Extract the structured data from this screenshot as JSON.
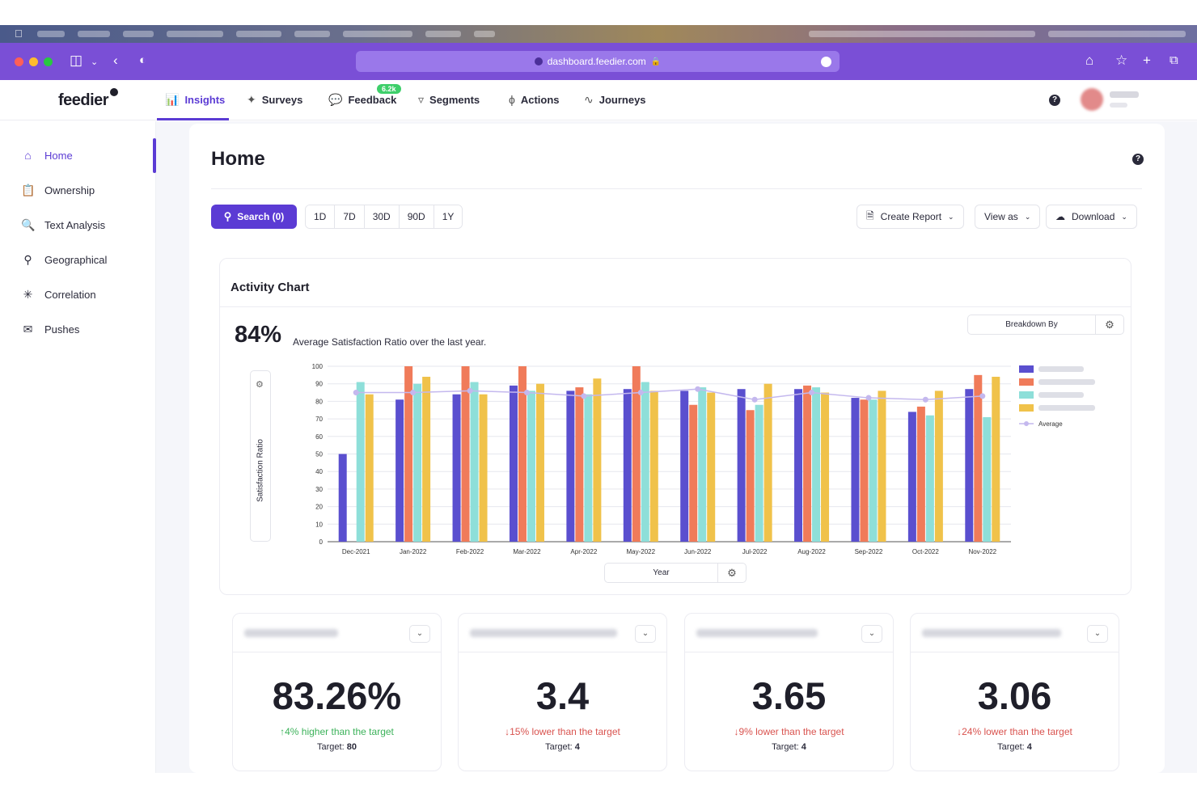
{
  "browser": {
    "url": "dashboard.feedier.com"
  },
  "app": {
    "logo": "feedier",
    "nav": [
      {
        "label": "Insights",
        "icon": "bar-chart-icon",
        "active": true
      },
      {
        "label": "Surveys",
        "icon": "satellite-icon"
      },
      {
        "label": "Feedback",
        "icon": "chat-icon",
        "badge": "6.2k"
      },
      {
        "label": "Segments",
        "icon": "funnel-icon"
      },
      {
        "label": "Actions",
        "icon": "lightning-icon"
      },
      {
        "label": "Journeys",
        "icon": "pulse-icon"
      }
    ]
  },
  "sidebar": {
    "items": [
      {
        "label": "Home",
        "icon": "home-icon",
        "active": true
      },
      {
        "label": "Ownership",
        "icon": "clipboard-icon"
      },
      {
        "label": "Text Analysis",
        "icon": "document-search-icon"
      },
      {
        "label": "Geographical",
        "icon": "map-pin-icon"
      },
      {
        "label": "Correlation",
        "icon": "network-icon"
      },
      {
        "label": "Pushes",
        "icon": "envelope-icon"
      }
    ]
  },
  "page": {
    "title": "Home"
  },
  "toolbar": {
    "search_label": "Search (0)",
    "ranges": [
      "1D",
      "7D",
      "30D",
      "90D",
      "1Y"
    ],
    "create_report": "Create Report",
    "view_as": "View as",
    "download": "Download"
  },
  "activity": {
    "title": "Activity Chart",
    "big_value": "84%",
    "caption": "Average Satisfaction Ratio over the last year.",
    "breakdown_label": "Breakdown By",
    "y_axis_title": "Satisfaction Ratio",
    "x_axis_control": "Year"
  },
  "chart_data": {
    "type": "bar",
    "categories": [
      "Dec-2021",
      "Jan-2022",
      "Feb-2022",
      "Mar-2022",
      "Apr-2022",
      "May-2022",
      "Jun-2022",
      "Jul-2022",
      "Aug-2022",
      "Sep-2022",
      "Oct-2022",
      "Nov-2022"
    ],
    "ylim": [
      0,
      100
    ],
    "yticks": [
      0,
      10,
      20,
      30,
      40,
      50,
      60,
      70,
      80,
      90,
      100
    ],
    "grid": true,
    "legend_position": "right",
    "series": [
      {
        "color": "#5a4fcf",
        "values": [
          50,
          81,
          84,
          89,
          86,
          87,
          86,
          87,
          87,
          82,
          74,
          87
        ]
      },
      {
        "color": "#f07b5a",
        "values": [
          null,
          100,
          100,
          100,
          88,
          100,
          78,
          75,
          89,
          81,
          77,
          95
        ]
      },
      {
        "color": "#8edfd9",
        "values": [
          91,
          90,
          91,
          86,
          84,
          91,
          88,
          78,
          88,
          81,
          72,
          71
        ]
      },
      {
        "color": "#f0c24a",
        "values": [
          84,
          94,
          84,
          90,
          93,
          86,
          85,
          90,
          85,
          86,
          86,
          94
        ]
      },
      {
        "name": "Average",
        "type": "line",
        "color": "#c4b8ee",
        "values": [
          85,
          85,
          86,
          85,
          83,
          85,
          87,
          81,
          85,
          82,
          81,
          83
        ]
      }
    ]
  },
  "kpis": [
    {
      "value": "83.26%",
      "delta": "4% higher than the target",
      "direction": "up",
      "target_label": "Target:",
      "target_value": "80"
    },
    {
      "value": "3.4",
      "delta": "15% lower than the target",
      "direction": "down",
      "target_label": "Target:",
      "target_value": "4"
    },
    {
      "value": "3.65",
      "delta": "9% lower than the target",
      "direction": "down",
      "target_label": "Target:",
      "target_value": "4"
    },
    {
      "value": "3.06",
      "delta": "24% lower than the target",
      "direction": "down",
      "target_label": "Target:",
      "target_value": "4"
    }
  ]
}
